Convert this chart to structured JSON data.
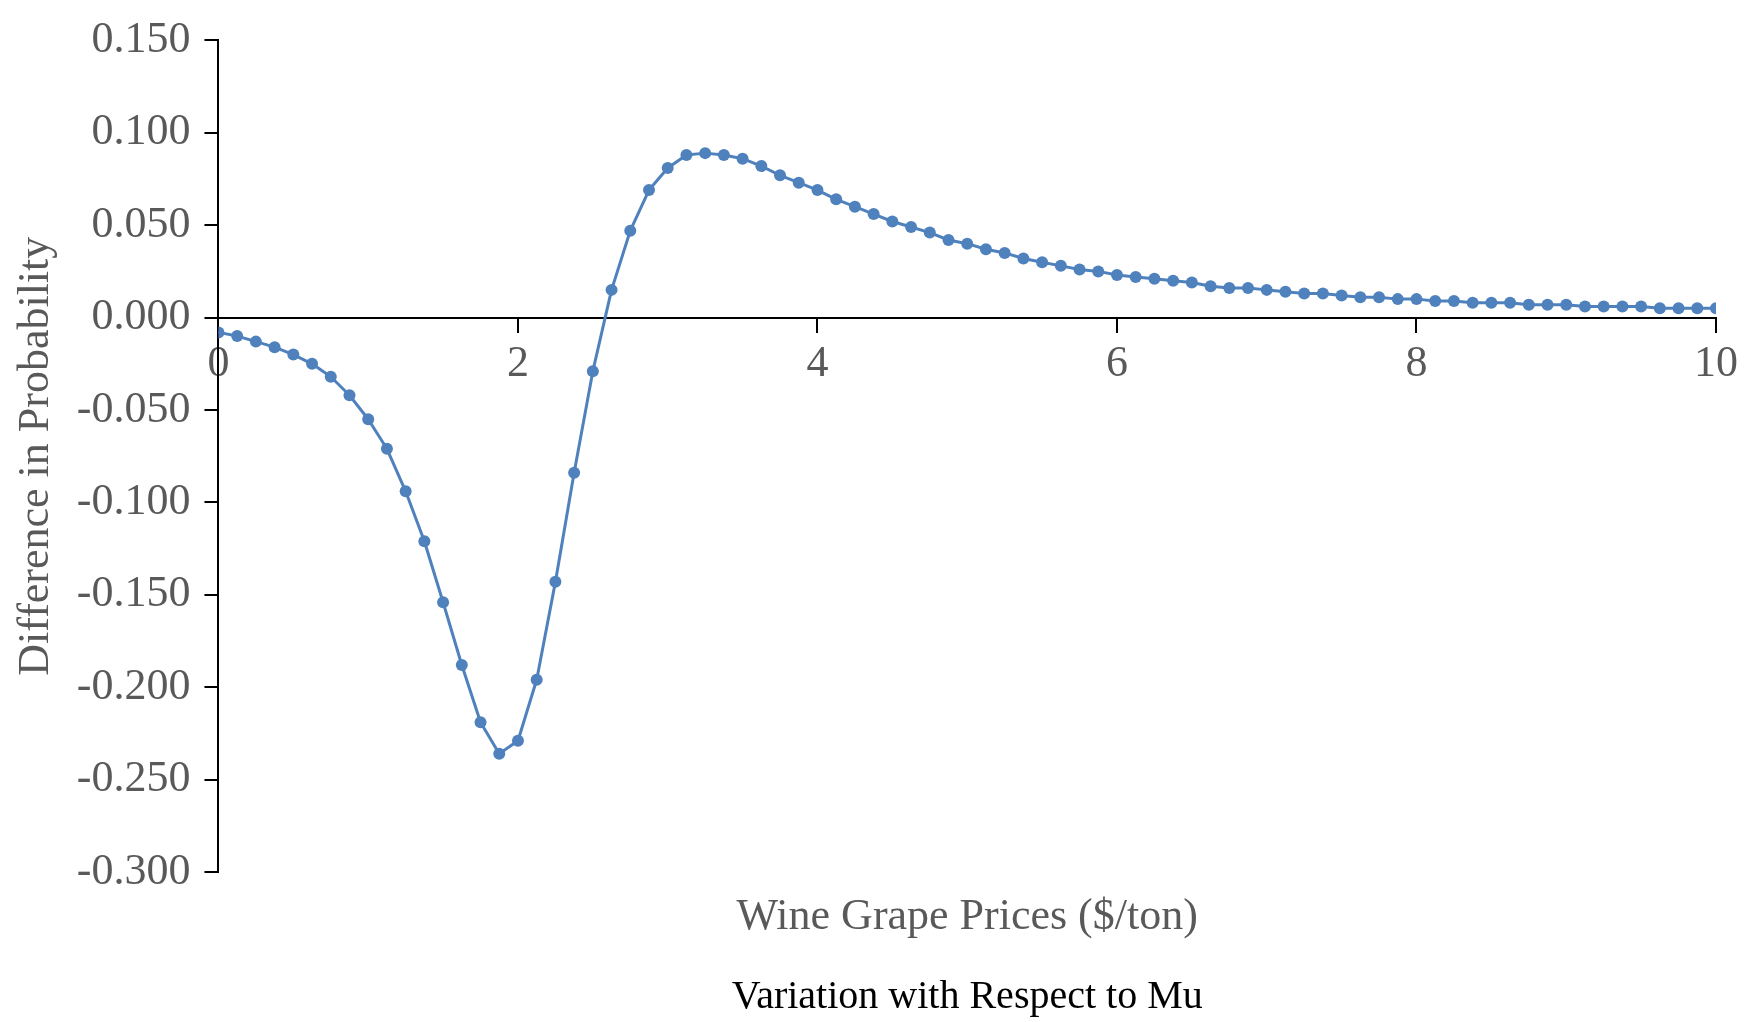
{
  "chart_data": {
    "type": "line",
    "title": "Variation with Respect to Mu",
    "xlabel": "Wine Grape Prices ($/ton)",
    "ylabel": "Difference in Probability",
    "x": [
      0,
      0.125,
      0.25,
      0.375,
      0.5,
      0.625,
      0.75,
      0.875,
      1,
      1.125,
      1.25,
      1.375,
      1.5,
      1.625,
      1.75,
      1.875,
      2,
      2.125,
      2.25,
      2.375,
      2.5,
      2.625,
      2.75,
      2.875,
      3,
      3.125,
      3.25,
      3.375,
      3.5,
      3.625,
      3.75,
      3.875,
      4,
      4.125,
      4.25,
      4.375,
      4.5,
      4.625,
      4.75,
      4.875,
      5,
      5.125,
      5.25,
      5.375,
      5.5,
      5.625,
      5.75,
      5.875,
      6,
      6.125,
      6.25,
      6.375,
      6.5,
      6.625,
      6.75,
      6.875,
      7,
      7.125,
      7.25,
      7.375,
      7.5,
      7.625,
      7.75,
      7.875,
      8,
      8.125,
      8.25,
      8.375,
      8.5,
      8.625,
      8.75,
      8.875,
      9,
      9.125,
      9.25,
      9.375,
      9.5,
      9.625,
      9.75,
      9.875,
      10
    ],
    "series": [
      {
        "color": "#4f81bd",
        "values": [
          -0.008,
          -0.01,
          -0.013,
          -0.016,
          -0.02,
          -0.025,
          -0.032,
          -0.042,
          -0.055,
          -0.071,
          -0.094,
          -0.121,
          -0.154,
          -0.188,
          -0.219,
          -0.236,
          -0.229,
          -0.196,
          -0.143,
          -0.084,
          -0.029,
          0.015,
          0.047,
          0.069,
          0.081,
          0.088,
          0.089,
          0.088,
          0.086,
          0.082,
          0.077,
          0.073,
          0.069,
          0.064,
          0.06,
          0.056,
          0.052,
          0.049,
          0.046,
          0.042,
          0.04,
          0.037,
          0.035,
          0.032,
          0.03,
          0.028,
          0.026,
          0.025,
          0.023,
          0.022,
          0.021,
          0.02,
          0.019,
          0.017,
          0.016,
          0.016,
          0.015,
          0.014,
          0.013,
          0.013,
          0.012,
          0.011,
          0.011,
          0.01,
          0.01,
          0.009,
          0.009,
          0.008,
          0.008,
          0.008,
          0.007,
          0.007,
          0.007,
          0.006,
          0.006,
          0.006,
          0.006,
          0.005,
          0.005,
          0.005,
          0.005
        ]
      }
    ],
    "xlim": [
      0,
      10
    ],
    "xticks": [
      0,
      2,
      4,
      6,
      8,
      10
    ],
    "ylim": [
      -0.3,
      0.15
    ],
    "yticks": [
      {
        "value": -0.3,
        "label": "-0.300"
      },
      {
        "value": -0.25,
        "label": "-0.250"
      },
      {
        "value": -0.2,
        "label": "-0.200"
      },
      {
        "value": -0.15,
        "label": "-0.150"
      },
      {
        "value": -0.1,
        "label": "-0.100"
      },
      {
        "value": -0.05,
        "label": "-0.050"
      },
      {
        "value": 0,
        "label": "0.000"
      },
      {
        "value": 0.05,
        "label": "0.050"
      },
      {
        "value": 0.1,
        "label": "0.100"
      },
      {
        "value": 0.15,
        "label": "0.150"
      }
    ],
    "marker": "circle",
    "line_style": "solid",
    "grid": false,
    "legend": false
  }
}
